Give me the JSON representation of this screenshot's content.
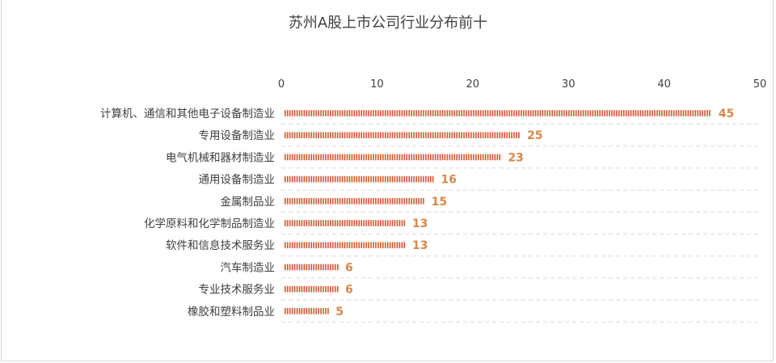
{
  "colors": {
    "bar": "#d4552f",
    "label": "#d8884a",
    "grid": "#d9d9d9",
    "text": "#404040"
  },
  "chart_data": {
    "type": "bar",
    "orientation": "horizontal",
    "title": "苏州A股上市公司行业分布前十",
    "categories": [
      "计算机、通信和其他电子设备制造业",
      "专用设备制造业",
      "电气机械和器材制造业",
      "通用设备制造业",
      "金属制品业",
      "化学原料和化学制品制造业",
      "软件和信息技术服务业",
      "汽车制造业",
      "专业技术服务业",
      "橡胶和塑料制品业"
    ],
    "values": [
      45,
      25,
      23,
      16,
      15,
      13,
      13,
      6,
      6,
      5
    ],
    "xlim": [
      0,
      50
    ],
    "xticks": [
      0,
      10,
      20,
      30,
      40,
      50
    ],
    "x_axis_position": "top",
    "grid": true,
    "data_labels": true
  }
}
